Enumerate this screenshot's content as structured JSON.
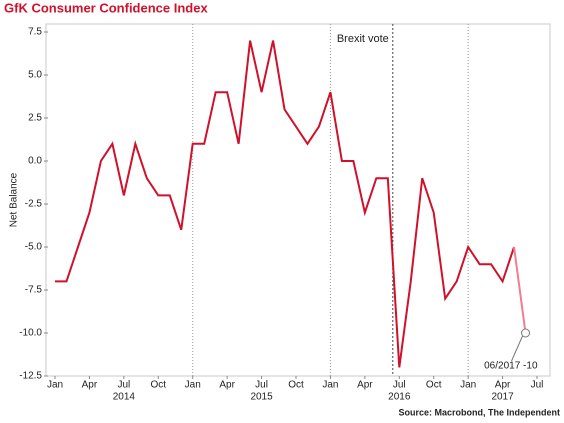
{
  "chart_data": {
    "type": "line",
    "title": "GfK Consumer Confidence Index",
    "y_label": "Net Balance",
    "source": "Source: Macrobond, The Independent",
    "x": [
      "2014-01",
      "2014-02",
      "2014-03",
      "2014-04",
      "2014-05",
      "2014-06",
      "2014-07",
      "2014-08",
      "2014-09",
      "2014-10",
      "2014-11",
      "2014-12",
      "2015-01",
      "2015-02",
      "2015-03",
      "2015-04",
      "2015-05",
      "2015-06",
      "2015-07",
      "2015-08",
      "2015-09",
      "2015-10",
      "2015-11",
      "2015-12",
      "2016-01",
      "2016-02",
      "2016-03",
      "2016-04",
      "2016-05",
      "2016-06",
      "2016-07",
      "2016-08",
      "2016-09",
      "2016-10",
      "2016-11",
      "2016-12",
      "2017-01",
      "2017-02",
      "2017-03",
      "2017-04",
      "2017-05",
      "2017-06"
    ],
    "series": [
      {
        "color": "#d0112b",
        "last_segment_color": "#ef7f8f",
        "values": [
          -7,
          -7,
          -5,
          -3,
          0,
          1,
          -2,
          1,
          -1,
          -2,
          -2,
          -4,
          1,
          1,
          4,
          4,
          1,
          7,
          4,
          7,
          3,
          2,
          1,
          2,
          4,
          0,
          0,
          -3,
          -1,
          -1,
          -12,
          -7,
          -1,
          -3,
          -8,
          -7,
          -5,
          -6,
          -6,
          -7,
          -5,
          -10
        ]
      }
    ],
    "xlim": [
      "2014-01",
      "2017-07"
    ],
    "xticks": [
      {
        "value": "2014-01",
        "label": "Jan"
      },
      {
        "value": "2014-04",
        "label": "Apr"
      },
      {
        "value": "2014-07",
        "label": "Jul"
      },
      {
        "value": "2014-10",
        "label": "Oct"
      },
      {
        "value": "2015-01",
        "label": "Jan"
      },
      {
        "value": "2015-04",
        "label": "Apr"
      },
      {
        "value": "2015-07",
        "label": "Jul"
      },
      {
        "value": "2015-10",
        "label": "Oct"
      },
      {
        "value": "2016-01",
        "label": "Jan"
      },
      {
        "value": "2016-04",
        "label": "Apr"
      },
      {
        "value": "2016-07",
        "label": "Jul"
      },
      {
        "value": "2016-10",
        "label": "Oct"
      },
      {
        "value": "2017-01",
        "label": "Jan"
      },
      {
        "value": "2017-04",
        "label": "Apr"
      },
      {
        "value": "2017-07",
        "label": "Jul"
      }
    ],
    "year_labels": [
      {
        "value": "2014-07",
        "label": "2014"
      },
      {
        "value": "2015-07",
        "label": "2015"
      },
      {
        "value": "2016-07",
        "label": "2016"
      },
      {
        "value": "2017-04",
        "label": "2017"
      }
    ],
    "year_grid": [
      "2015-01",
      "2016-01",
      "2017-01"
    ],
    "ylim": [
      -12.5,
      7.5
    ],
    "yticks": [
      7.5,
      {
        "value": 5,
        "label": "5.0"
      },
      2.5,
      {
        "value": 0,
        "label": "0.0"
      },
      -2.5,
      {
        "value": -5,
        "label": "-5.0"
      },
      -7.5,
      {
        "value": -10,
        "label": "-10.0"
      },
      -12.5
    ],
    "event_line": {
      "x": "2016-06",
      "label": "Brexit vote"
    },
    "annotation": {
      "text": "06/2017 -10"
    }
  }
}
